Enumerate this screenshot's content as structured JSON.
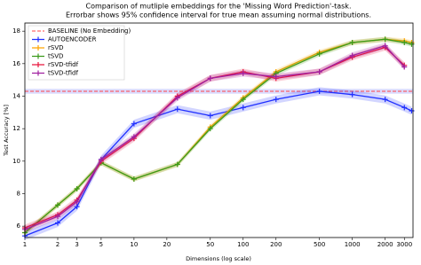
{
  "chart_data": {
    "type": "line",
    "title": [
      "Comparison of mutliple embeddings for the 'Missing Word Prediction'-task.",
      "Errorbar shows 95% confidence interval for true mean assuming normal distributions."
    ],
    "x_label": "Dimensions (log scale)",
    "y_label": "Test Accuracy [%]",
    "x": [
      1,
      2,
      3,
      5,
      10,
      25,
      50,
      100,
      200,
      500,
      1000,
      2000,
      3000,
      3500
    ],
    "xlim": [
      1,
      3600
    ],
    "xticks": [
      1,
      2,
      3,
      5,
      10,
      20,
      50,
      100,
      200,
      500,
      1000,
      2000,
      3000
    ],
    "log_x": true,
    "ylim": [
      5.3,
      18.5
    ],
    "yticks": [
      6,
      8,
      10,
      12,
      14,
      16,
      18
    ],
    "baseline": {
      "name": "BASELINE (No Embedding)",
      "value": 14.3,
      "ci": 0.15,
      "color": "#ff4444"
    },
    "series": [
      {
        "name": "AUTOENCODER",
        "color": "#1f2fff",
        "ci": 0.25,
        "values": [
          5.4,
          6.2,
          7.2,
          10.1,
          12.3,
          13.2,
          12.8,
          13.3,
          13.8,
          14.3,
          14.1,
          13.8,
          13.3,
          13.1
        ]
      },
      {
        "name": "rSVD",
        "color": "#ffa500",
        "ci": 0.15,
        "values": [
          5.6,
          7.3,
          8.3,
          9.9,
          8.9,
          9.8,
          12.1,
          13.9,
          15.5,
          16.7,
          17.3,
          17.5,
          17.4,
          17.3
        ]
      },
      {
        "name": "tSVD",
        "color": "#3a9a1a",
        "ci": 0.15,
        "values": [
          5.6,
          7.3,
          8.3,
          9.9,
          8.9,
          9.8,
          12.0,
          13.8,
          15.4,
          16.6,
          17.3,
          17.5,
          17.3,
          17.2
        ]
      },
      {
        "name": "rSVD-tfidf",
        "color": "#e8143c",
        "ci": 0.2,
        "values": [
          5.9,
          6.7,
          7.6,
          10.0,
          11.4,
          14.0,
          15.1,
          15.5,
          15.1,
          15.5,
          16.4,
          17.0,
          15.9,
          null
        ]
      },
      {
        "name": "tSVD-tfidf",
        "color": "#a020a0",
        "ci": 0.2,
        "values": [
          5.8,
          6.6,
          7.5,
          10.1,
          11.5,
          13.9,
          15.1,
          15.4,
          15.2,
          15.5,
          16.5,
          17.1,
          15.8,
          null
        ]
      }
    ]
  }
}
